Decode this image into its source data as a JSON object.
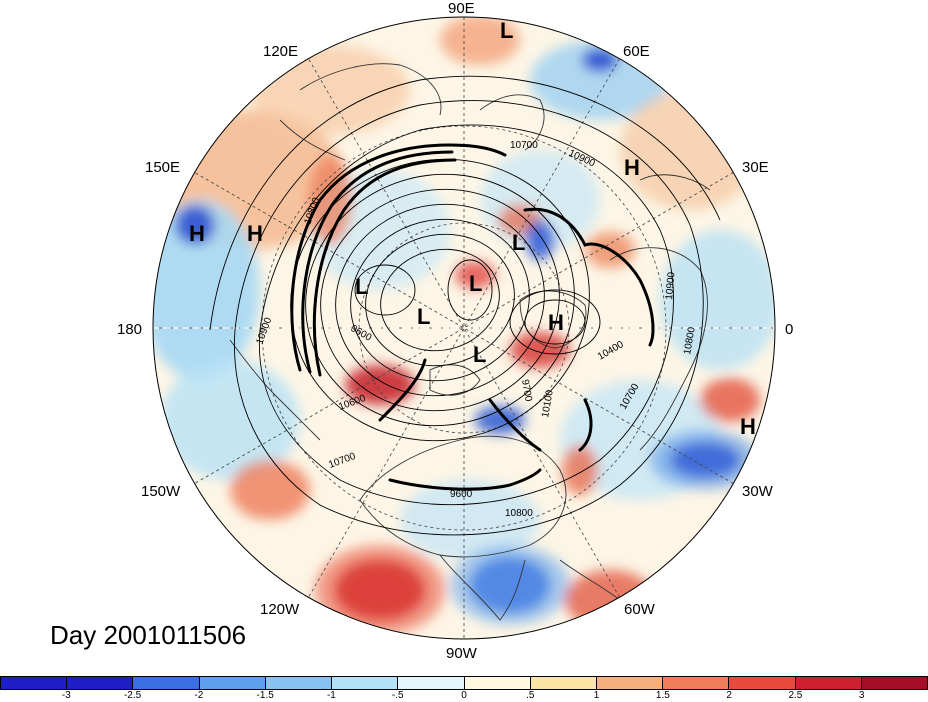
{
  "title": "Day 2001011506",
  "longitude_labels": [
    "90E",
    "60E",
    "30E",
    "0",
    "30W",
    "60W",
    "90W",
    "120W",
    "150W",
    "180",
    "150E",
    "120E"
  ],
  "pressure_systems": [
    "L",
    "L",
    "L",
    "L",
    "L",
    "L",
    "L",
    "H",
    "H",
    "H",
    "H",
    "H"
  ],
  "contour_labels": [
    "10700",
    "10900",
    "10800",
    "10900",
    "9600",
    "9700",
    "10100",
    "10700",
    "10800",
    "10900",
    "10400",
    "10700",
    "10600",
    "10800",
    "9600"
  ],
  "colorbar": {
    "ticks": [
      "-3",
      "-2.5",
      "-2",
      "-1.5",
      "-1",
      "-.5",
      "0",
      ".5",
      "1",
      "1.5",
      "2",
      "2.5",
      "3"
    ],
    "colors": [
      "#1f1fc8",
      "#3a6fe0",
      "#5fa0ec",
      "#86c2f2",
      "#b2e2f7",
      "#e2f6fb",
      "#fdf8df",
      "#fce3a6",
      "#f7b07c",
      "#f07e5a",
      "#e84a3e",
      "#cf2030",
      "#a50f25"
    ]
  }
}
